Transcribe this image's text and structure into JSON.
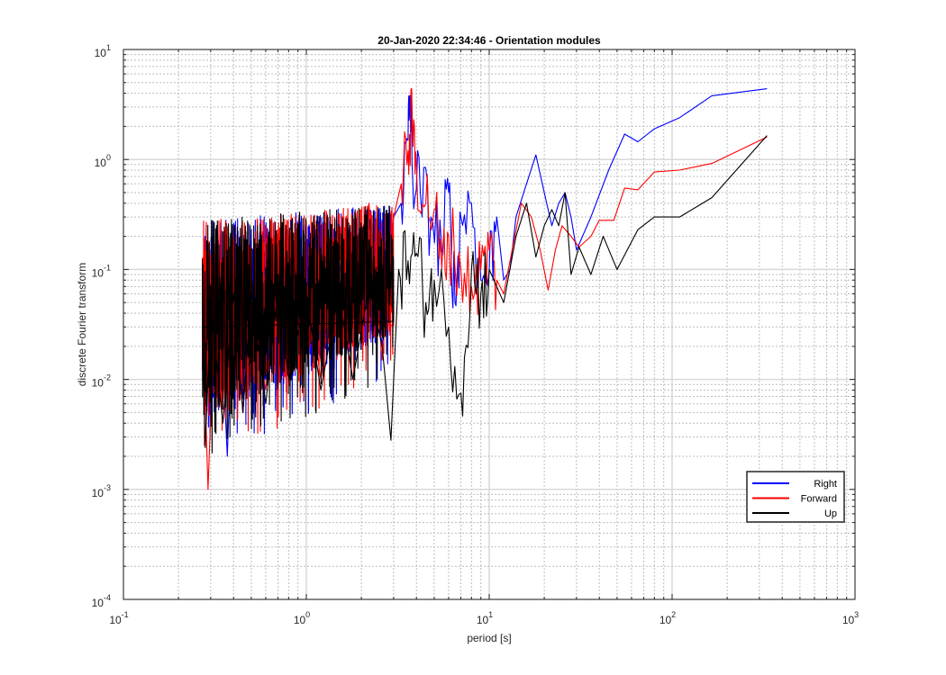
{
  "chart_data": {
    "type": "line",
    "title": "20-Jan-2020 22:34:46 - Orientation modules",
    "xlabel": "period [s]",
    "ylabel": "discrete Fourier transform",
    "xscale": "log",
    "yscale": "log",
    "xlim": [
      0.1,
      1000
    ],
    "ylim": [
      0.0001,
      10
    ],
    "x_ticks": [
      {
        "base": "10",
        "exp": "-1"
      },
      {
        "base": "10",
        "exp": "0"
      },
      {
        "base": "10",
        "exp": "1"
      },
      {
        "base": "10",
        "exp": "2"
      },
      {
        "base": "10",
        "exp": "3"
      }
    ],
    "y_ticks": [
      {
        "base": "10",
        "exp": "-4"
      },
      {
        "base": "10",
        "exp": "-3"
      },
      {
        "base": "10",
        "exp": "-2"
      },
      {
        "base": "10",
        "exp": "-1"
      },
      {
        "base": "10",
        "exp": "0"
      },
      {
        "base": "10",
        "exp": "1"
      }
    ],
    "grid": true,
    "minor_grid": true,
    "legend_position": "bottom-right",
    "noise_region": {
      "x_start": 0.27,
      "x_end": 3.0,
      "note": "dense high-frequency content"
    },
    "series": [
      {
        "name": "Right",
        "color": "#0000ff",
        "points": [
          [
            0.27,
            0.1
          ],
          [
            0.3,
            0.004
          ],
          [
            0.33,
            0.12
          ],
          [
            0.37,
            0.002
          ],
          [
            0.4,
            0.1
          ],
          [
            0.45,
            0.005
          ],
          [
            0.5,
            0.08
          ],
          [
            0.6,
            0.01
          ],
          [
            0.7,
            0.09
          ],
          [
            0.8,
            0.012
          ],
          [
            1.0,
            0.1
          ],
          [
            1.2,
            0.015
          ],
          [
            1.5,
            0.12
          ],
          [
            1.8,
            0.02
          ],
          [
            2.2,
            0.3
          ],
          [
            2.6,
            0.02
          ],
          [
            3.0,
            0.3
          ],
          [
            3.3,
            0.4
          ],
          [
            3.6,
            1.5
          ],
          [
            3.7,
            3.8
          ],
          [
            3.8,
            0.8
          ],
          [
            4.2,
            0.5
          ],
          [
            4.8,
            0.3
          ],
          [
            5.5,
            0.15
          ],
          [
            6.0,
            0.5
          ],
          [
            6.5,
            0.05
          ],
          [
            7.0,
            0.3
          ],
          [
            8.0,
            0.4
          ],
          [
            9.0,
            0.08
          ],
          [
            10.0,
            0.1
          ],
          [
            11.0,
            0.3
          ],
          [
            12.0,
            0.08
          ],
          [
            13.0,
            0.1
          ],
          [
            14.0,
            0.3
          ],
          [
            16.0,
            0.6
          ],
          [
            18.0,
            1.1
          ],
          [
            20.0,
            0.5
          ],
          [
            22.0,
            0.25
          ],
          [
            24.0,
            0.4
          ],
          [
            26.0,
            0.5
          ],
          [
            28.0,
            0.3
          ],
          [
            30.0,
            0.15
          ],
          [
            36.0,
            0.3
          ],
          [
            45.0,
            0.8
          ],
          [
            55.0,
            1.7
          ],
          [
            65.0,
            1.45
          ],
          [
            80.0,
            1.9
          ],
          [
            110.0,
            2.4
          ],
          [
            165.0,
            3.8
          ],
          [
            330.0,
            4.4
          ]
        ]
      },
      {
        "name": "Forward",
        "color": "#ff0000",
        "points": [
          [
            0.27,
            0.05
          ],
          [
            0.29,
            0.001
          ],
          [
            0.32,
            0.09
          ],
          [
            0.36,
            0.006
          ],
          [
            0.4,
            0.07
          ],
          [
            0.45,
            0.005
          ],
          [
            0.5,
            0.06
          ],
          [
            0.6,
            0.008
          ],
          [
            0.7,
            0.09
          ],
          [
            0.8,
            0.012
          ],
          [
            1.0,
            0.08
          ],
          [
            1.2,
            0.01
          ],
          [
            1.5,
            0.2
          ],
          [
            1.8,
            0.02
          ],
          [
            2.2,
            0.4
          ],
          [
            2.6,
            0.015
          ],
          [
            3.0,
            0.3
          ],
          [
            3.3,
            0.6
          ],
          [
            3.6,
            1.2
          ],
          [
            3.8,
            2.2
          ],
          [
            4.0,
            0.9
          ],
          [
            4.5,
            0.4
          ],
          [
            5.0,
            0.35
          ],
          [
            5.5,
            0.1
          ],
          [
            6.0,
            0.2
          ],
          [
            7.0,
            0.1
          ],
          [
            8.0,
            0.07
          ],
          [
            9.0,
            0.1
          ],
          [
            10.0,
            0.15
          ],
          [
            11.0,
            0.08
          ],
          [
            12.0,
            0.06
          ],
          [
            13.0,
            0.12
          ],
          [
            15.0,
            0.4
          ],
          [
            17.0,
            0.3
          ],
          [
            19.0,
            0.15
          ],
          [
            21.0,
            0.065
          ],
          [
            23.0,
            0.15
          ],
          [
            25.0,
            0.25
          ],
          [
            28.0,
            0.2
          ],
          [
            31.0,
            0.16
          ],
          [
            36.0,
            0.2
          ],
          [
            40.0,
            0.28
          ],
          [
            48.0,
            0.28
          ],
          [
            55.0,
            0.55
          ],
          [
            65.0,
            0.53
          ],
          [
            80.0,
            0.77
          ],
          [
            110.0,
            0.8
          ],
          [
            165.0,
            0.92
          ],
          [
            330.0,
            1.6
          ]
        ]
      },
      {
        "name": "Up",
        "color": "#000000",
        "points": [
          [
            0.27,
            0.03
          ],
          [
            0.28,
            0.0024
          ],
          [
            0.3,
            0.05
          ],
          [
            0.35,
            0.004
          ],
          [
            0.4,
            0.06
          ],
          [
            0.45,
            0.005
          ],
          [
            0.5,
            0.06
          ],
          [
            0.6,
            0.006
          ],
          [
            0.7,
            0.07
          ],
          [
            0.8,
            0.01
          ],
          [
            1.0,
            0.06
          ],
          [
            1.2,
            0.008
          ],
          [
            1.5,
            0.06
          ],
          [
            1.8,
            0.01
          ],
          [
            2.2,
            0.07
          ],
          [
            2.6,
            0.02
          ],
          [
            2.9,
            0.0028
          ],
          [
            3.2,
            0.1
          ],
          [
            3.6,
            0.12
          ],
          [
            4.0,
            0.14
          ],
          [
            4.5,
            0.05
          ],
          [
            5.0,
            0.08
          ],
          [
            6.0,
            0.03
          ],
          [
            7.0,
            0.0075
          ],
          [
            8.0,
            0.1
          ],
          [
            9.0,
            0.06
          ],
          [
            10.0,
            0.1
          ],
          [
            12.0,
            0.05
          ],
          [
            14.0,
            0.2
          ],
          [
            16.0,
            0.4
          ],
          [
            18.0,
            0.13
          ],
          [
            20.0,
            0.25
          ],
          [
            22.0,
            0.35
          ],
          [
            24.0,
            0.25
          ],
          [
            26.0,
            0.5
          ],
          [
            28.0,
            0.09
          ],
          [
            31.0,
            0.16
          ],
          [
            36.0,
            0.09
          ],
          [
            42.0,
            0.2
          ],
          [
            50.0,
            0.1
          ],
          [
            65.0,
            0.23
          ],
          [
            80.0,
            0.3
          ],
          [
            110.0,
            0.3
          ],
          [
            165.0,
            0.45
          ],
          [
            330.0,
            1.65
          ]
        ]
      }
    ]
  }
}
